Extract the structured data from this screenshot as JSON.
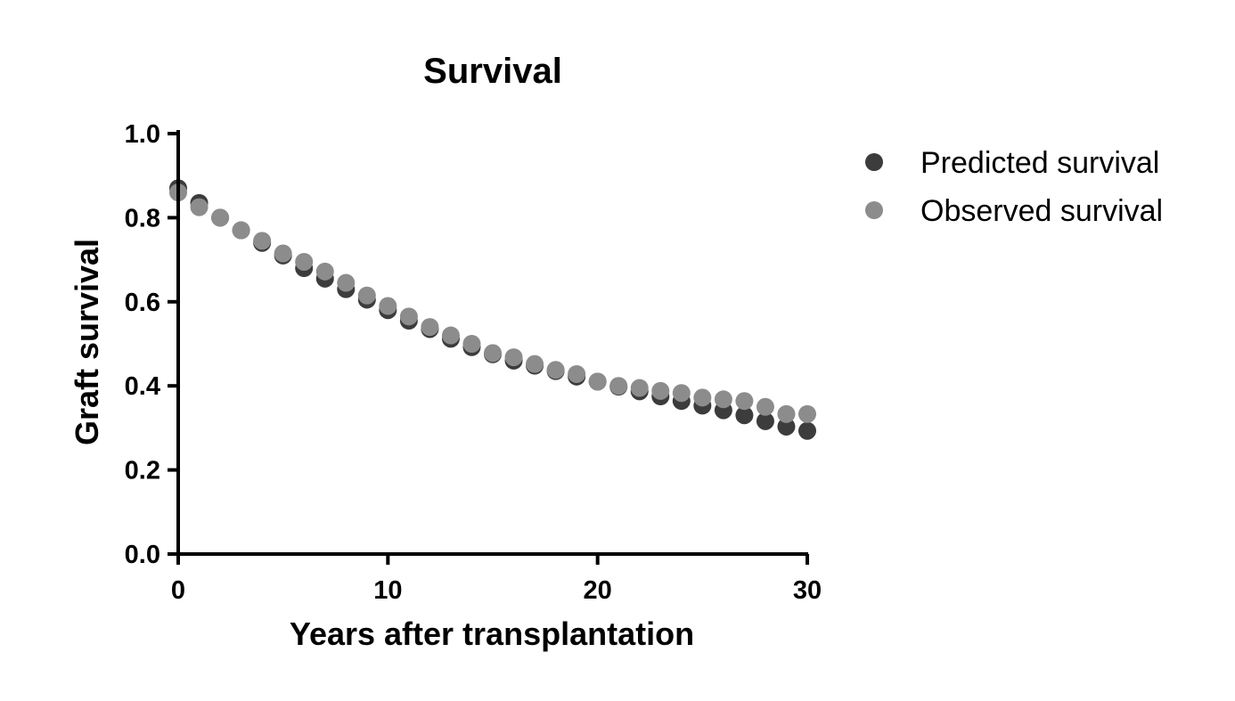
{
  "chart_data": {
    "type": "scatter",
    "title": "Survival",
    "xlabel": "Years after transplantation",
    "ylabel": "Graft survival",
    "xlim": [
      0,
      30
    ],
    "ylim": [
      0,
      1
    ],
    "x_ticks": [
      "0",
      "10",
      "20",
      "30"
    ],
    "y_ticks": [
      "0.0",
      "0.2",
      "0.4",
      "0.6",
      "0.8",
      "1.0"
    ],
    "grid": false,
    "legend_position": "top-right, outside plot",
    "x": [
      0,
      1,
      2,
      3,
      4,
      5,
      6,
      7,
      8,
      9,
      10,
      11,
      12,
      13,
      14,
      15,
      16,
      17,
      18,
      19,
      20,
      21,
      22,
      23,
      24,
      25,
      26,
      27,
      28,
      29,
      30
    ],
    "series": [
      {
        "name": "Predicted survival",
        "color": "#3c3c3c",
        "values": [
          0.87,
          0.835,
          0.8,
          0.77,
          0.74,
          0.71,
          0.68,
          0.655,
          0.63,
          0.605,
          0.58,
          0.555,
          0.535,
          0.512,
          0.492,
          0.475,
          0.46,
          0.448,
          0.435,
          0.422,
          0.41,
          0.398,
          0.387,
          0.375,
          0.364,
          0.353,
          0.342,
          0.33,
          0.316,
          0.303,
          0.293
        ]
      },
      {
        "name": "Observed survival",
        "color": "#8c8c8c",
        "values": [
          0.86,
          0.825,
          0.8,
          0.77,
          0.745,
          0.715,
          0.695,
          0.672,
          0.645,
          0.615,
          0.59,
          0.565,
          0.54,
          0.52,
          0.5,
          0.478,
          0.468,
          0.452,
          0.438,
          0.428,
          0.41,
          0.4,
          0.395,
          0.388,
          0.383,
          0.372,
          0.368,
          0.364,
          0.35,
          0.333,
          0.333
        ]
      }
    ]
  }
}
